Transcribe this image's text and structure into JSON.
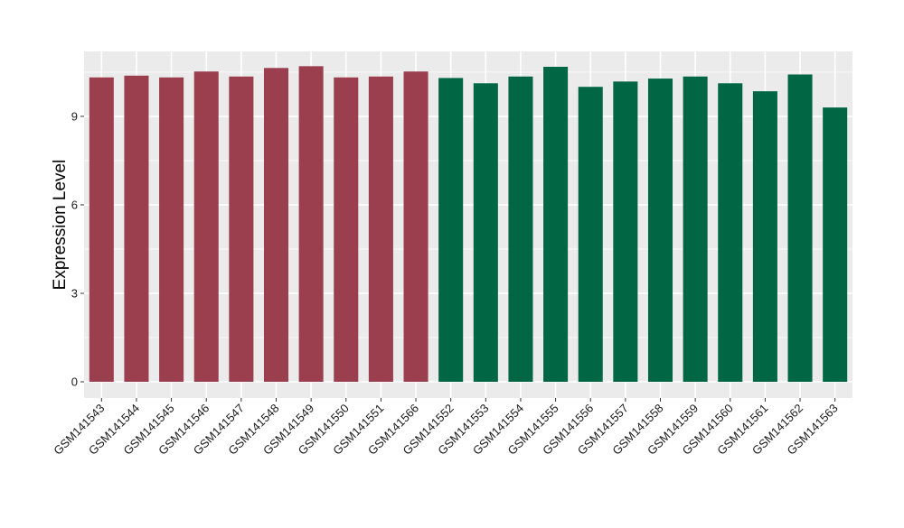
{
  "chart_data": {
    "type": "bar",
    "title": "",
    "xlabel": "",
    "ylabel": "Expression Level",
    "ylim": [
      -0.55,
      11.2
    ],
    "yticks": [
      0,
      3,
      6,
      9
    ],
    "grid": true,
    "legend": "none",
    "categories": [
      "GSM141543",
      "GSM141544",
      "GSM141545",
      "GSM141546",
      "GSM141547",
      "GSM141548",
      "GSM141549",
      "GSM141550",
      "GSM141551",
      "GSM141566",
      "GSM141552",
      "GSM141553",
      "GSM141554",
      "GSM141555",
      "GSM141556",
      "GSM141557",
      "GSM141558",
      "GSM141559",
      "GSM141560",
      "GSM141561",
      "GSM141562",
      "GSM141563"
    ],
    "values": [
      10.32,
      10.38,
      10.32,
      10.52,
      10.35,
      10.64,
      10.7,
      10.32,
      10.35,
      10.52,
      10.3,
      10.12,
      10.35,
      10.68,
      10.0,
      10.18,
      10.28,
      10.35,
      10.12,
      9.85,
      10.42,
      9.3
    ],
    "groups": [
      "a",
      "a",
      "a",
      "a",
      "a",
      "a",
      "a",
      "a",
      "a",
      "a",
      "b",
      "b",
      "b",
      "b",
      "b",
      "b",
      "b",
      "b",
      "b",
      "b",
      "b",
      "b"
    ],
    "colors": {
      "a": "#9b3f4f",
      "b": "#006644"
    },
    "panel_color": "#ebebeb",
    "grid_color": "#ffffff"
  }
}
